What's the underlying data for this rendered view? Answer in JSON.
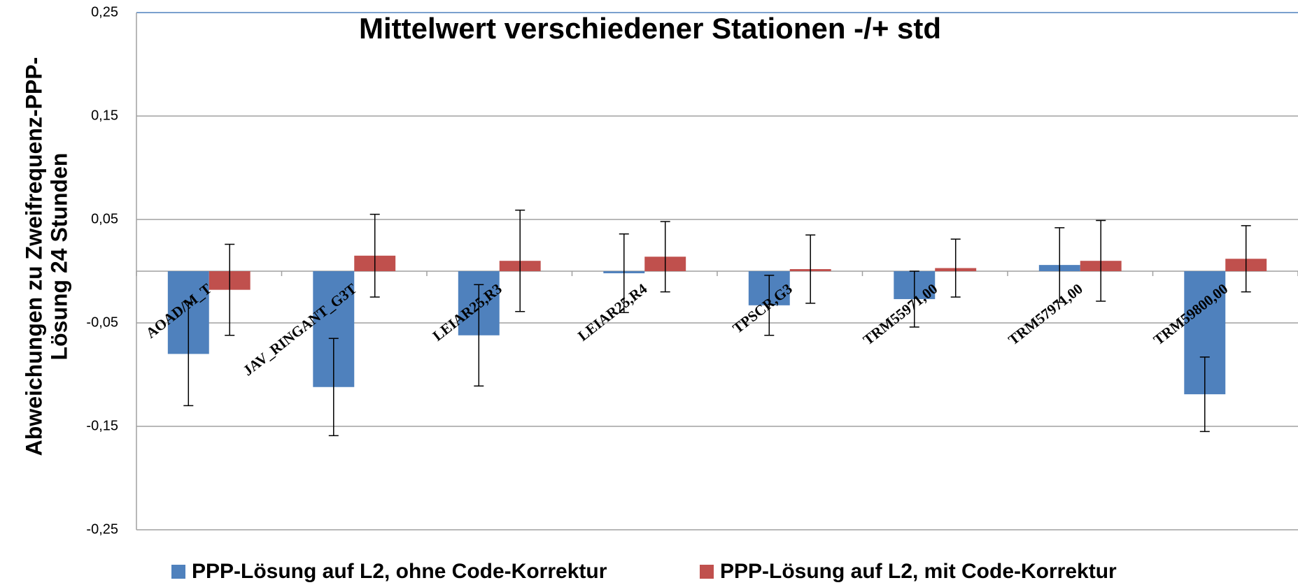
{
  "chart_data": {
    "type": "bar",
    "title": "Mittelwert verschiedener Stationen -/+ std",
    "ylabel": [
      "Abweichungen zu Zweifrequenz-PPP-",
      "Lösung 24 Stunden"
    ],
    "categories": [
      "AOAD/M_T",
      "JAV_RINGANT_G3T",
      "LEIAR25,R3",
      "LEIAR25,R4",
      "TPSCR,G3",
      "TRM55971,00",
      "TRM57971,00",
      "TRM59800,00"
    ],
    "series": [
      {
        "name": "PPP-Lösung auf L2, ohne Code-Korrektur",
        "color": "#4f81bd",
        "values": [
          -0.08,
          -0.112,
          -0.062,
          -0.002,
          -0.033,
          -0.027,
          0.006,
          -0.119
        ],
        "errors": [
          0.05,
          0.047,
          0.049,
          0.038,
          0.029,
          0.027,
          0.036,
          0.036
        ]
      },
      {
        "name": "PPP-Lösung auf L2, mit Code-Korrektur",
        "color": "#c0504d",
        "values": [
          -0.018,
          0.015,
          0.01,
          0.014,
          0.002,
          0.003,
          0.01,
          0.012
        ],
        "errors": [
          0.044,
          0.04,
          0.049,
          0.034,
          0.033,
          0.028,
          0.039,
          0.032
        ]
      }
    ],
    "ylim": [
      -0.25,
      0.25
    ],
    "yticks": [
      {
        "value": 0.25,
        "label": "0,25"
      },
      {
        "value": 0.15,
        "label": "0,15"
      },
      {
        "value": 0.05,
        "label": "0,05"
      },
      {
        "value": -0.05,
        "label": "-0,05"
      },
      {
        "value": -0.15,
        "label": "-0,15"
      },
      {
        "value": -0.25,
        "label": "-0,25"
      }
    ],
    "grid": true,
    "legend": "bottom"
  }
}
